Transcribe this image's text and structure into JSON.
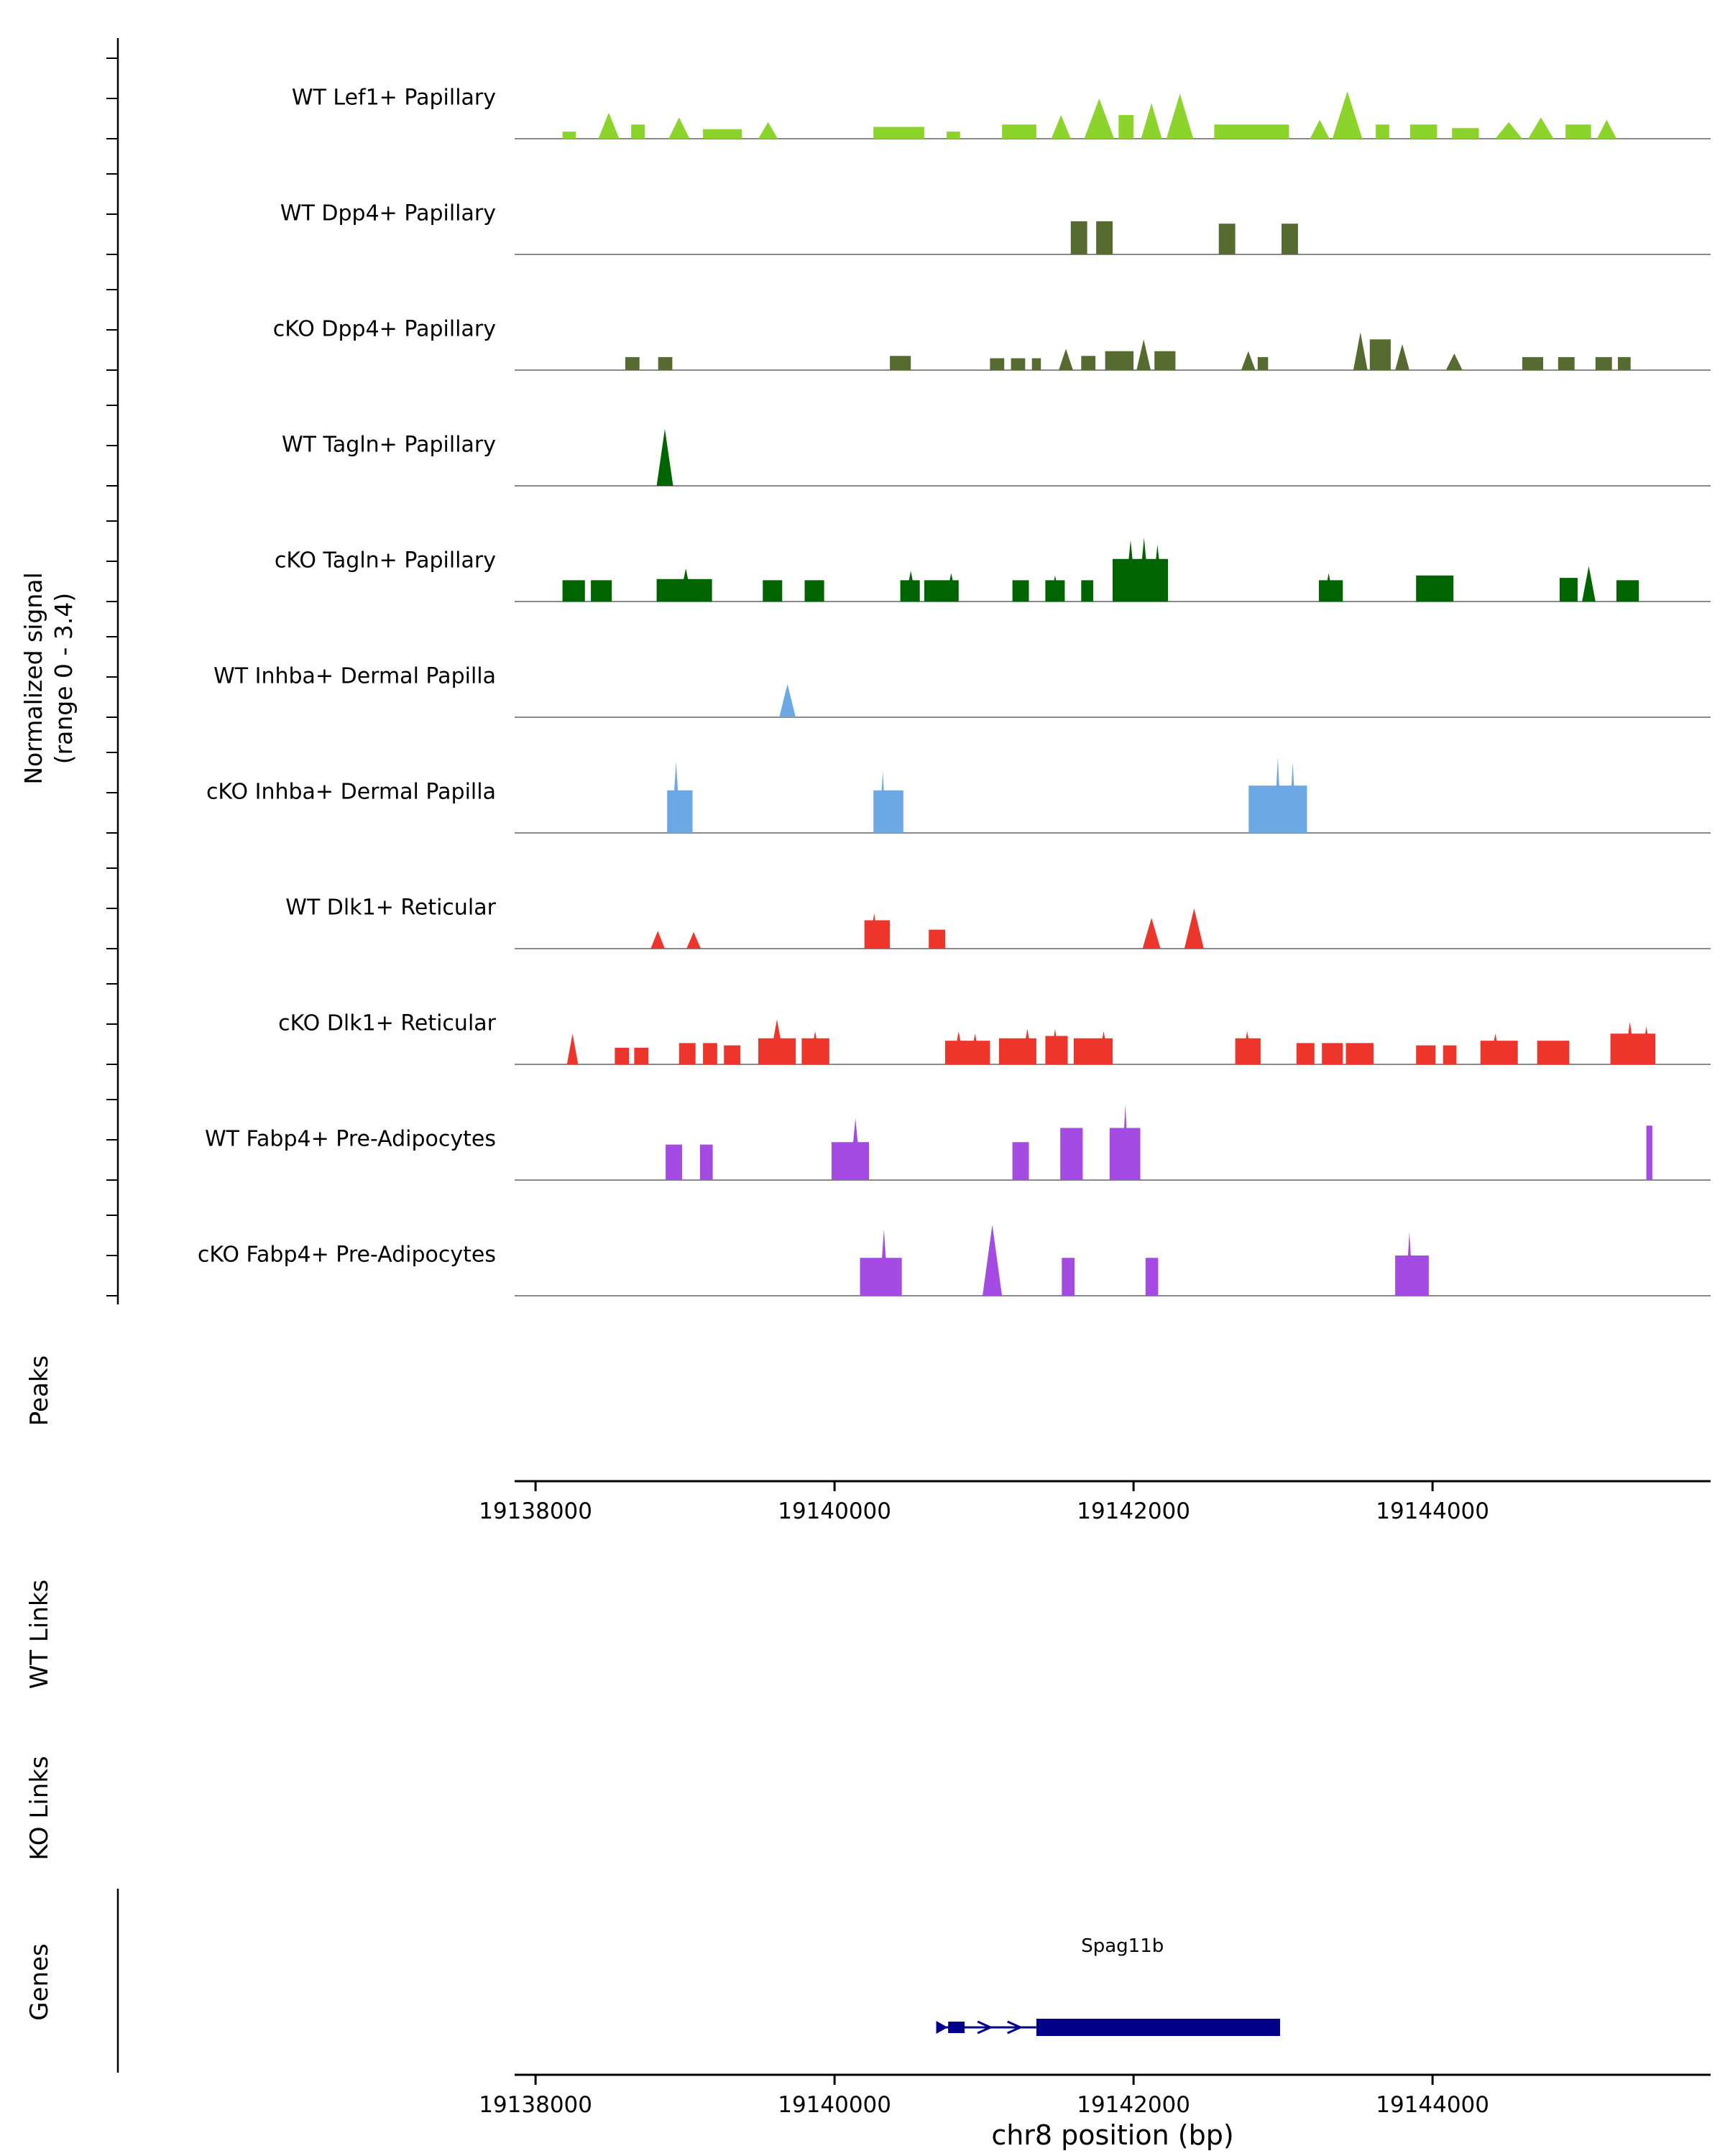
{
  "figure": {
    "y_axis_label_line1": "Normalized signal",
    "y_axis_label_line2": "(range 0 - 3.4)",
    "x_axis_label": "chr8 position (bp)",
    "section_labels": {
      "peaks": "Peaks",
      "wt_links": "WT Links",
      "ko_links": "KO Links",
      "genes": "Genes"
    }
  },
  "chart_data": {
    "type": "area",
    "title": "",
    "xlabel": "chr8 position (bp)",
    "region": {
      "chrom": "chr8",
      "start": 19137860,
      "end": 19145860
    },
    "x_ticks": [
      19138000,
      19140000,
      19142000,
      19144000
    ],
    "x_tick_labels": [
      "19138000",
      "19140000",
      "19142000",
      "19144000"
    ],
    "signal_range": [
      0,
      3.4
    ],
    "tracks": [
      {
        "label": "WT Lef1+ Papillary",
        "color": "#8CD32B",
        "peaks": [
          [
            19138180,
            90,
            0.3,
            "r"
          ],
          [
            19138420,
            140,
            1.1,
            "t"
          ],
          [
            19138640,
            90,
            0.6,
            "r"
          ],
          [
            19138890,
            140,
            0.9,
            "t"
          ],
          [
            19139120,
            260,
            0.4,
            "r"
          ],
          [
            19139490,
            130,
            0.7,
            "t"
          ],
          [
            19140260,
            340,
            0.5,
            "r"
          ],
          [
            19140750,
            90,
            0.3,
            "r"
          ],
          [
            19141120,
            230,
            0.6,
            "r"
          ],
          [
            19141450,
            130,
            1.0,
            "t"
          ],
          [
            19141670,
            200,
            1.7,
            "t"
          ],
          [
            19141900,
            100,
            1.0,
            "r"
          ],
          [
            19142050,
            140,
            1.5,
            "t"
          ],
          [
            19142220,
            180,
            1.9,
            "t"
          ],
          [
            19142540,
            500,
            0.6,
            "r"
          ],
          [
            19143180,
            130,
            0.8,
            "t"
          ],
          [
            19143330,
            200,
            2.0,
            "t"
          ],
          [
            19143620,
            90,
            0.6,
            "r"
          ],
          [
            19143850,
            180,
            0.6,
            "r"
          ],
          [
            19144130,
            180,
            0.45,
            "r"
          ],
          [
            19144420,
            180,
            0.7,
            "t"
          ],
          [
            19144640,
            170,
            0.9,
            "t"
          ],
          [
            19144890,
            170,
            0.6,
            "r"
          ],
          [
            19145100,
            130,
            0.8,
            "t"
          ]
        ]
      },
      {
        "label": "WT Dpp4+ Papillary",
        "color": "#556B2F",
        "peaks": [
          [
            19141580,
            110,
            1.4,
            "r"
          ],
          [
            19141750,
            110,
            1.4,
            "r"
          ],
          [
            19142570,
            110,
            1.3,
            "r"
          ],
          [
            19142990,
            110,
            1.3,
            "r"
          ]
        ]
      },
      {
        "label": "cKO Dpp4+ Papillary",
        "color": "#556B2F",
        "peaks": [
          [
            19138600,
            95,
            0.55,
            "r"
          ],
          [
            19138820,
            95,
            0.55,
            "r"
          ],
          [
            19140370,
            140,
            0.6,
            "r"
          ],
          [
            19141040,
            95,
            0.5,
            "r"
          ],
          [
            19141180,
            95,
            0.5,
            "r"
          ],
          [
            19141320,
            60,
            0.5,
            "r"
          ],
          [
            19141500,
            95,
            0.9,
            "t"
          ],
          [
            19141650,
            95,
            0.6,
            "r"
          ],
          [
            19141810,
            190,
            0.8,
            "r"
          ],
          [
            19142020,
            95,
            1.3,
            "t"
          ],
          [
            19142140,
            140,
            0.8,
            "r"
          ],
          [
            19142720,
            95,
            0.8,
            "t"
          ],
          [
            19142830,
            70,
            0.55,
            "r"
          ],
          [
            19143470,
            95,
            1.6,
            "t"
          ],
          [
            19143580,
            140,
            1.3,
            "r"
          ],
          [
            19143750,
            95,
            1.1,
            "t"
          ],
          [
            19144090,
            110,
            0.7,
            "t"
          ],
          [
            19144600,
            140,
            0.55,
            "r"
          ],
          [
            19144840,
            110,
            0.55,
            "r"
          ],
          [
            19145090,
            110,
            0.55,
            "r"
          ],
          [
            19145240,
            85,
            0.55,
            "r"
          ]
        ]
      },
      {
        "label": "WT Tagln+ Papillary",
        "color": "#006400",
        "peaks": [
          [
            19138810,
            110,
            2.4,
            "t"
          ]
        ]
      },
      {
        "label": "cKO Tagln+ Papillary",
        "color": "#006400",
        "peaks": [
          [
            19138180,
            150,
            0.9,
            "r"
          ],
          [
            19138370,
            140,
            0.9,
            "r"
          ],
          [
            19138810,
            370,
            0.95,
            "r"
          ],
          [
            19138960,
            90,
            1.4,
            "t"
          ],
          [
            19139520,
            130,
            0.9,
            "r"
          ],
          [
            19139800,
            130,
            0.9,
            "r"
          ],
          [
            19140440,
            130,
            0.9,
            "r"
          ],
          [
            19140470,
            80,
            1.3,
            "t"
          ],
          [
            19140600,
            230,
            0.9,
            "r"
          ],
          [
            19140740,
            80,
            1.2,
            "t"
          ],
          [
            19141190,
            110,
            0.9,
            "r"
          ],
          [
            19141410,
            130,
            0.9,
            "r"
          ],
          [
            19141440,
            70,
            1.1,
            "t"
          ],
          [
            19141650,
            80,
            0.9,
            "r"
          ],
          [
            19141860,
            370,
            1.8,
            "r"
          ],
          [
            19141940,
            80,
            2.6,
            "t"
          ],
          [
            19142030,
            80,
            2.7,
            "t"
          ],
          [
            19142120,
            80,
            2.4,
            "t"
          ],
          [
            19143240,
            160,
            0.9,
            "r"
          ],
          [
            19143270,
            70,
            1.2,
            "t"
          ],
          [
            19143890,
            250,
            1.1,
            "r"
          ],
          [
            19144850,
            120,
            1.0,
            "r"
          ],
          [
            19145000,
            90,
            1.5,
            "t"
          ],
          [
            19145230,
            150,
            0.9,
            "r"
          ]
        ]
      },
      {
        "label": "WT Inhba+ Dermal Papilla",
        "color": "#6BA8E5",
        "peaks": [
          [
            19139630,
            110,
            1.4,
            "t"
          ]
        ]
      },
      {
        "label": "cKO Inhba+ Dermal Papilla",
        "color": "#6BA8E5",
        "peaks": [
          [
            19138880,
            170,
            1.8,
            "r"
          ],
          [
            19138910,
            60,
            3.0,
            "t"
          ],
          [
            19140260,
            200,
            1.8,
            "r"
          ],
          [
            19140300,
            45,
            2.6,
            "t"
          ],
          [
            19142770,
            390,
            2.0,
            "r"
          ],
          [
            19142940,
            50,
            3.2,
            "t"
          ],
          [
            19143040,
            50,
            3.0,
            "t"
          ]
        ]
      },
      {
        "label": "WT Dlk1+ Reticular",
        "color": "#EE352C",
        "peaks": [
          [
            19138770,
            95,
            0.75,
            "t"
          ],
          [
            19139010,
            95,
            0.7,
            "t"
          ],
          [
            19140200,
            170,
            1.2,
            "r"
          ],
          [
            19140230,
            70,
            1.5,
            "t"
          ],
          [
            19140630,
            110,
            0.8,
            "r"
          ],
          [
            19142060,
            120,
            1.3,
            "t"
          ],
          [
            19142340,
            130,
            1.7,
            "t"
          ]
        ]
      },
      {
        "label": "cKO Dlk1+ Reticular",
        "color": "#EE352C",
        "peaks": [
          [
            19138210,
            75,
            1.3,
            "t"
          ],
          [
            19138530,
            95,
            0.7,
            "r"
          ],
          [
            19138660,
            95,
            0.7,
            "r"
          ],
          [
            19138960,
            110,
            0.9,
            "r"
          ],
          [
            19139120,
            95,
            0.9,
            "r"
          ],
          [
            19139260,
            110,
            0.8,
            "r"
          ],
          [
            19139490,
            250,
            1.1,
            "r"
          ],
          [
            19139560,
            110,
            1.9,
            "t"
          ],
          [
            19139780,
            185,
            1.1,
            "r"
          ],
          [
            19139830,
            80,
            1.4,
            "t"
          ],
          [
            19140740,
            300,
            1.0,
            "r"
          ],
          [
            19140790,
            80,
            1.4,
            "t"
          ],
          [
            19140900,
            80,
            1.3,
            "t"
          ],
          [
            19141100,
            250,
            1.1,
            "r"
          ],
          [
            19141250,
            80,
            1.5,
            "t"
          ],
          [
            19141410,
            150,
            1.2,
            "r"
          ],
          [
            19141440,
            70,
            1.5,
            "t"
          ],
          [
            19141600,
            260,
            1.1,
            "r"
          ],
          [
            19141760,
            80,
            1.4,
            "t"
          ],
          [
            19142680,
            170,
            1.1,
            "r"
          ],
          [
            19142720,
            80,
            1.4,
            "t"
          ],
          [
            19143090,
            120,
            0.9,
            "r"
          ],
          [
            19143260,
            140,
            0.9,
            "r"
          ],
          [
            19143420,
            185,
            0.9,
            "r"
          ],
          [
            19143890,
            130,
            0.8,
            "r"
          ],
          [
            19144070,
            90,
            0.8,
            "r"
          ],
          [
            19144320,
            250,
            1.0,
            "r"
          ],
          [
            19144380,
            80,
            1.3,
            "t"
          ],
          [
            19144700,
            215,
            1.0,
            "r"
          ],
          [
            19145190,
            300,
            1.3,
            "r"
          ],
          [
            19145280,
            80,
            1.8,
            "t"
          ],
          [
            19145390,
            80,
            1.6,
            "t"
          ]
        ]
      },
      {
        "label": "WT Fabp4+ Pre-Adipocytes",
        "color": "#A44BE3",
        "peaks": [
          [
            19138870,
            110,
            1.5,
            "r"
          ],
          [
            19139100,
            85,
            1.5,
            "r"
          ],
          [
            19139980,
            250,
            1.6,
            "r"
          ],
          [
            19140100,
            80,
            2.6,
            "t"
          ],
          [
            19141190,
            110,
            1.6,
            "r"
          ],
          [
            19141510,
            150,
            2.2,
            "r"
          ],
          [
            19141840,
            205,
            2.2,
            "r"
          ],
          [
            19141920,
            50,
            3.2,
            "t"
          ],
          [
            19145430,
            40,
            2.3,
            "r"
          ]
        ]
      },
      {
        "label": "cKO Fabp4+ Pre-Adipocytes",
        "color": "#A44BE3",
        "peaks": [
          [
            19140170,
            280,
            1.6,
            "r"
          ],
          [
            19140300,
            60,
            2.8,
            "t"
          ],
          [
            19140990,
            130,
            3.0,
            "t"
          ],
          [
            19141520,
            85,
            1.6,
            "r"
          ],
          [
            19142080,
            85,
            1.6,
            "r"
          ],
          [
            19143750,
            225,
            1.7,
            "r"
          ],
          [
            19143820,
            50,
            2.7,
            "t"
          ]
        ]
      }
    ],
    "peaks_track": {
      "label": "Peaks",
      "features": []
    },
    "links": {
      "wt": {
        "label": "WT Links",
        "links": []
      },
      "ko": {
        "label": "KO Links",
        "links": []
      }
    },
    "genes": [
      {
        "name": "Spag11b",
        "strand": "+",
        "start": 19140680,
        "end": 19142980,
        "utr": [
          19140760,
          19140870
        ],
        "cds": [
          19141350,
          19142980
        ],
        "intron_arrows": [
          19141000,
          19141200
        ],
        "color": "#00008B"
      }
    ]
  }
}
